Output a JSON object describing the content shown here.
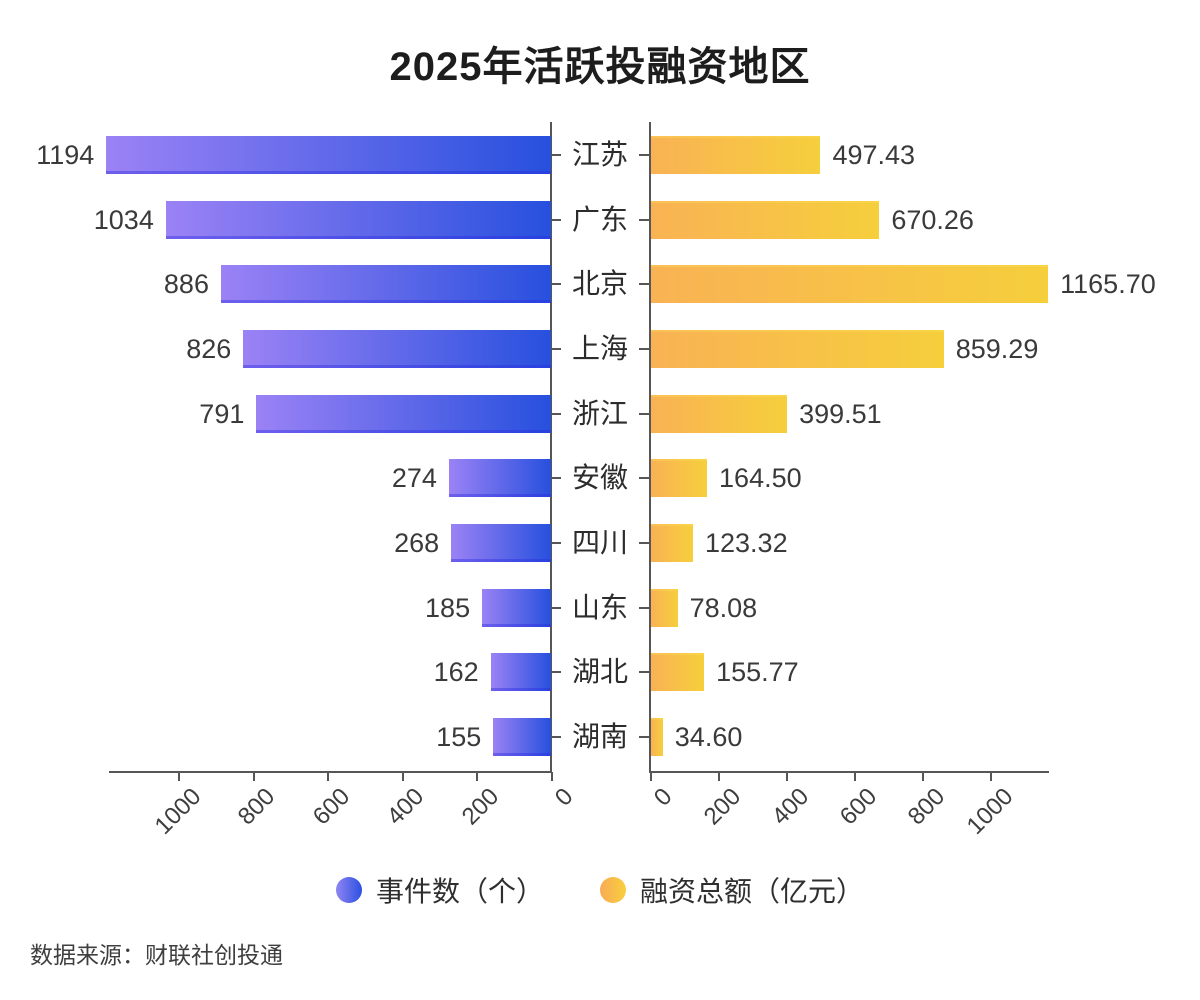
{
  "title": "2025年活跃投融资地区",
  "source": "数据来源：财联社创投通",
  "colors": {
    "axis": "#565656",
    "text": "#3a3a3a",
    "event_gradient_start": "#9b82f5",
    "event_gradient_end": "#2750de",
    "funding_gradient_start": "#f9b254",
    "funding_gradient_end": "#f6cf3c"
  },
  "chart_data": {
    "type": "bar",
    "orientation": "horizontal-diverging",
    "title": "2025年活跃投融资地区",
    "categories": [
      "江苏",
      "广东",
      "北京",
      "上海",
      "浙江",
      "安徽",
      "四川",
      "山东",
      "湖北",
      "湖南"
    ],
    "series": [
      {
        "name": "事件数（个）",
        "side": "left",
        "values": [
          1194,
          1034,
          886,
          826,
          791,
          274,
          268,
          185,
          162,
          155
        ],
        "labels": [
          "1194",
          "1034",
          "886",
          "826",
          "791",
          "274",
          "268",
          "185",
          "162",
          "155"
        ],
        "axis_ticks": [
          1000,
          800,
          600,
          400,
          200,
          0
        ],
        "axis_range": [
          0,
          1190
        ],
        "gradient": [
          "#9b82f5",
          "#2750de"
        ]
      },
      {
        "name": "融资总额（亿元）",
        "side": "right",
        "values": [
          497.43,
          670.26,
          1165.7,
          859.29,
          399.51,
          164.5,
          123.32,
          78.08,
          155.77,
          34.6
        ],
        "labels": [
          "497.43",
          "670.26",
          "1165.70",
          "859.29",
          "399.51",
          "164.50",
          "123.32",
          "78.08",
          "155.77",
          "34.60"
        ],
        "axis_ticks": [
          0,
          200,
          400,
          600,
          800,
          1000
        ],
        "axis_range": [
          0,
          1170
        ],
        "gradient": [
          "#f9b254",
          "#f6cf3c"
        ]
      }
    ],
    "legend_position": "bottom",
    "grid": false,
    "value_labels_shown": true
  }
}
